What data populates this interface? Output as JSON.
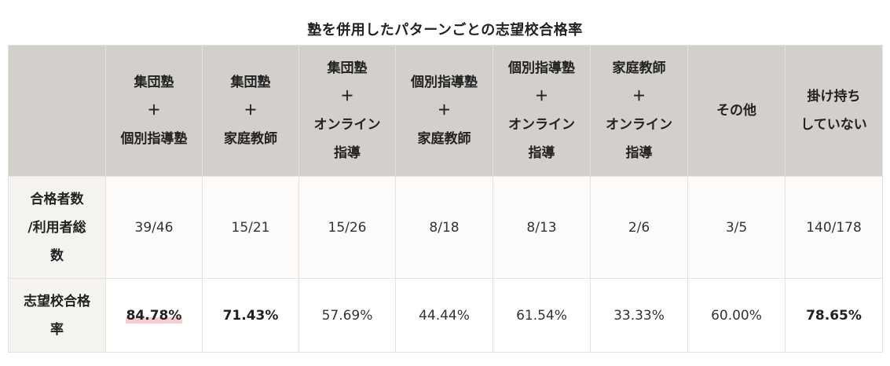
{
  "title": "塾を併用したパターンごとの志望校合格率",
  "chart_data": {
    "type": "table",
    "title": "塾を併用したパターンごとの志望校合格率",
    "columns": [
      [
        "集団塾",
        "＋",
        "個別指導塾"
      ],
      [
        "集団塾",
        "＋",
        "家庭教師"
      ],
      [
        "集団塾",
        "＋",
        "オンライン",
        "指導"
      ],
      [
        "個別指導塾",
        "＋",
        "家庭教師"
      ],
      [
        "個別指導塾",
        "＋",
        "オンライン",
        "指導"
      ],
      [
        "家庭教師",
        "＋",
        "オンライン",
        "指導"
      ],
      [
        "その他"
      ],
      [
        "掛け持ち",
        "していない"
      ]
    ],
    "rows": [
      {
        "header": [
          "合格者数",
          "/利用者総",
          "数"
        ],
        "cells": [
          "39/46",
          "15/21",
          "15/26",
          "8/18",
          "8/13",
          "2/6",
          "3/5",
          "140/178"
        ]
      },
      {
        "header": [
          "志望校合格",
          "率"
        ],
        "cells": [
          "84.78%",
          "71.43%",
          "57.69%",
          "44.44%",
          "61.54%",
          "33.33%",
          "60.00%",
          "78.65%"
        ]
      }
    ],
    "emphasis": {
      "highlight_marker": [
        "84.78%"
      ],
      "bold": [
        "84.78%",
        "71.43%",
        "78.65%"
      ]
    }
  },
  "colors": {
    "header_bg": "#d3cfcb",
    "row_header_bg": "#f5f3f0",
    "count_row_bg": "#fcfbfa",
    "rate_row_bg": "#ffffff",
    "marker": "#f8cdd0",
    "border": "#e6e3df"
  }
}
